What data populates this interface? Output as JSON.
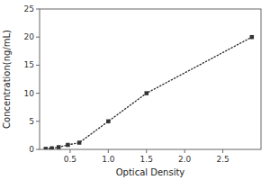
{
  "chart_data": {
    "type": "line",
    "xlabel": "Optical Density",
    "ylabel": "Concentration(ng/mL)",
    "x": [
      0.18,
      0.26,
      0.35,
      0.47,
      0.62,
      1.0,
      1.5,
      2.88
    ],
    "values": [
      0.1,
      0.2,
      0.4,
      0.8,
      1.2,
      5.0,
      10.0,
      20.0
    ],
    "color": "#333333",
    "marker": "square",
    "line_style": "dotted",
    "xlim": [
      0.1,
      3.0
    ],
    "ylim": [
      0,
      25
    ],
    "xticks": [
      0.5,
      {
        "value": 1.0,
        "label": "1.0"
      },
      1.5,
      {
        "value": 2.0,
        "label": "2.0"
      },
      2.5
    ],
    "yticks": [
      0,
      5,
      10,
      15,
      20,
      25
    ],
    "grid": false
  }
}
